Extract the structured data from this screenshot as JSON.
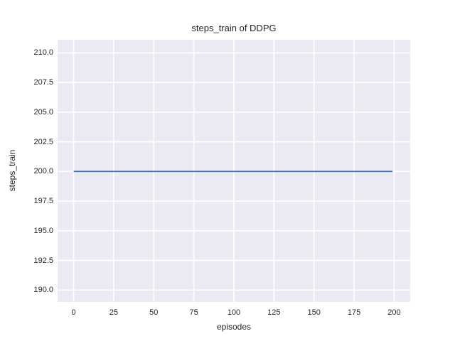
{
  "chart_data": {
    "type": "line",
    "title": "steps_train of DDPG",
    "xlabel": "episodes",
    "ylabel": "steps_train",
    "xlim": [
      -10,
      210
    ],
    "ylim": [
      189.0,
      211.1
    ],
    "xticks": [
      0,
      25,
      50,
      75,
      100,
      125,
      150,
      175,
      200
    ],
    "xtick_labels": [
      "0",
      "25",
      "50",
      "75",
      "100",
      "125",
      "150",
      "175",
      "200"
    ],
    "yticks": [
      190.0,
      192.5,
      195.0,
      197.5,
      200.0,
      202.5,
      205.0,
      207.5,
      210.0
    ],
    "ytick_labels": [
      "190.0",
      "192.5",
      "195.0",
      "197.5",
      "200.0",
      "202.5",
      "205.0",
      "207.5",
      "210.0"
    ],
    "grid": true,
    "legend": false,
    "plot_background": "#EAEAF2",
    "grid_color": "#FFFFFF",
    "grid_width": 1.6,
    "text_color": "#262626",
    "series": [
      {
        "name": "steps_train",
        "color": "#4C72B0",
        "line_width": 1.8,
        "x": [
          0,
          199
        ],
        "y": [
          200,
          200
        ]
      }
    ]
  }
}
